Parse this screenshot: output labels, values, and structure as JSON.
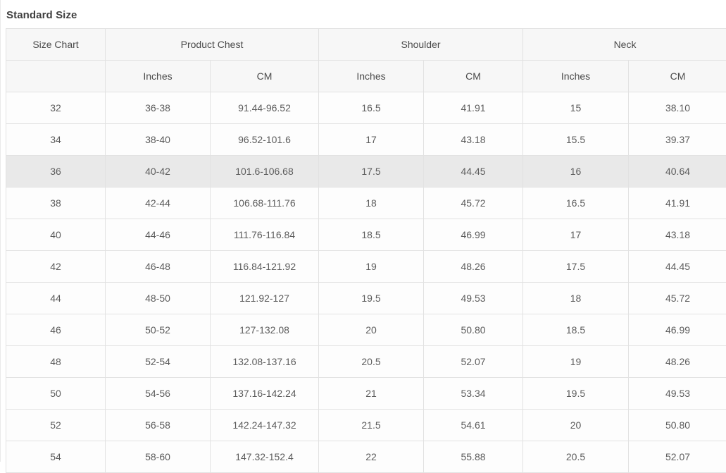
{
  "title": "Standard Size",
  "table": {
    "group_headers": [
      {
        "label": "Size Chart"
      },
      {
        "label": "Product Chest"
      },
      {
        "label": "Shoulder"
      },
      {
        "label": "Neck"
      }
    ],
    "subheaders": [
      "",
      "Inches",
      "CM",
      "Inches",
      "CM",
      "Inches",
      "CM"
    ],
    "rows": [
      [
        "32",
        "36-38",
        "91.44-96.52",
        "16.5",
        "41.91",
        "15",
        "38.10"
      ],
      [
        "34",
        "38-40",
        "96.52-101.6",
        "17",
        "43.18",
        "15.5",
        "39.37"
      ],
      [
        "36",
        "40-42",
        "101.6-106.68",
        "17.5",
        "44.45",
        "16",
        "40.64"
      ],
      [
        "38",
        "42-44",
        "106.68-111.76",
        "18",
        "45.72",
        "16.5",
        "41.91"
      ],
      [
        "40",
        "44-46",
        "111.76-116.84",
        "18.5",
        "46.99",
        "17",
        "43.18"
      ],
      [
        "42",
        "46-48",
        "116.84-121.92",
        "19",
        "48.26",
        "17.5",
        "44.45"
      ],
      [
        "44",
        "48-50",
        "121.92-127",
        "19.5",
        "49.53",
        "18",
        "45.72"
      ],
      [
        "46",
        "50-52",
        "127-132.08",
        "20",
        "50.80",
        "18.5",
        "46.99"
      ],
      [
        "48",
        "52-54",
        "132.08-137.16",
        "20.5",
        "52.07",
        "19",
        "48.26"
      ],
      [
        "50",
        "54-56",
        "137.16-142.24",
        "21",
        "53.34",
        "19.5",
        "49.53"
      ],
      [
        "52",
        "56-58",
        "142.24-147.32",
        "21.5",
        "54.61",
        "20",
        "50.80"
      ],
      [
        "54",
        "58-60",
        "147.32-152.4",
        "22",
        "55.88",
        "20.5",
        "52.07"
      ]
    ],
    "highlighted_row_index": 2
  },
  "colors": {
    "header_bg": "#f7f7f7",
    "row_bg": "#fdfdfd",
    "highlight_bg": "#e9e9e9",
    "border": "#e2e2e2",
    "cell_text": "#5c5c5c",
    "title_text": "#3f3f3f"
  }
}
